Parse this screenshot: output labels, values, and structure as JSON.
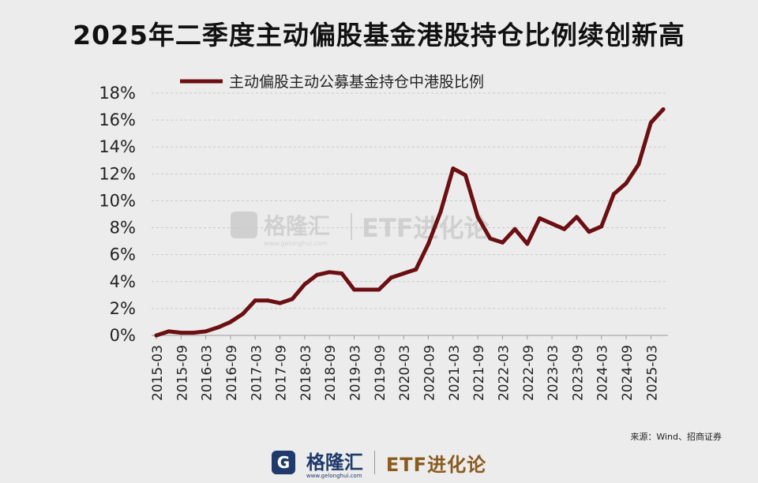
{
  "title": "2025年二季度主动偏股基金港股持仓比例续创新高",
  "watermark": {
    "brand": "格隆汇",
    "site": "www.gelonghui.com",
    "etf": "ETF进化论"
  },
  "source": "来源：Wind、招商证券",
  "footer": {
    "brand": "格隆汇",
    "site": "www.gelonghui.com",
    "etf": "ETF进化论"
  },
  "colors": {
    "line": "#6b0f12",
    "grid": "#c9c9c9"
  },
  "chart_data": {
    "type": "line",
    "legend_position": "top",
    "grid": true,
    "ylim": [
      0,
      18
    ],
    "yticks": [
      "0%",
      "2%",
      "4%",
      "6%",
      "8%",
      "10%",
      "12%",
      "14%",
      "16%",
      "18%"
    ],
    "xticks": [
      "2015-03",
      "2015-09",
      "2016-03",
      "2016-09",
      "2017-03",
      "2017-09",
      "2018-03",
      "2018-09",
      "2019-03",
      "2019-09",
      "2020-03",
      "2020-09",
      "2021-03",
      "2021-09",
      "2022-03",
      "2022-09",
      "2023-03",
      "2023-09",
      "2024-03",
      "2024-09",
      "2025-03"
    ],
    "x": [
      "2015-03",
      "2015-06",
      "2015-09",
      "2015-12",
      "2016-03",
      "2016-06",
      "2016-09",
      "2016-12",
      "2017-03",
      "2017-06",
      "2017-09",
      "2017-12",
      "2018-03",
      "2018-06",
      "2018-09",
      "2018-12",
      "2019-03",
      "2019-06",
      "2019-09",
      "2019-12",
      "2020-03",
      "2020-06",
      "2020-09",
      "2020-12",
      "2021-03",
      "2021-06",
      "2021-09",
      "2021-12",
      "2022-03",
      "2022-06",
      "2022-09",
      "2022-12",
      "2023-03",
      "2023-06",
      "2023-09",
      "2023-12",
      "2024-03",
      "2024-06",
      "2024-09",
      "2024-12",
      "2025-03",
      "2025-06"
    ],
    "series": [
      {
        "name": "主动偏股主动公募基金持仓中港股比例",
        "color": "#6b0f12",
        "values": [
          0.0,
          0.3,
          0.2,
          0.2,
          0.3,
          0.6,
          1.0,
          1.6,
          2.6,
          2.6,
          2.4,
          2.7,
          3.8,
          4.5,
          4.7,
          4.6,
          3.4,
          3.4,
          3.4,
          4.3,
          4.6,
          4.9,
          6.8,
          9.2,
          12.4,
          11.9,
          8.8,
          7.2,
          6.9,
          7.9,
          6.8,
          8.7,
          8.3,
          7.9,
          8.8,
          7.7,
          8.1,
          10.5,
          11.3,
          12.7,
          15.8,
          16.8
        ]
      }
    ]
  }
}
